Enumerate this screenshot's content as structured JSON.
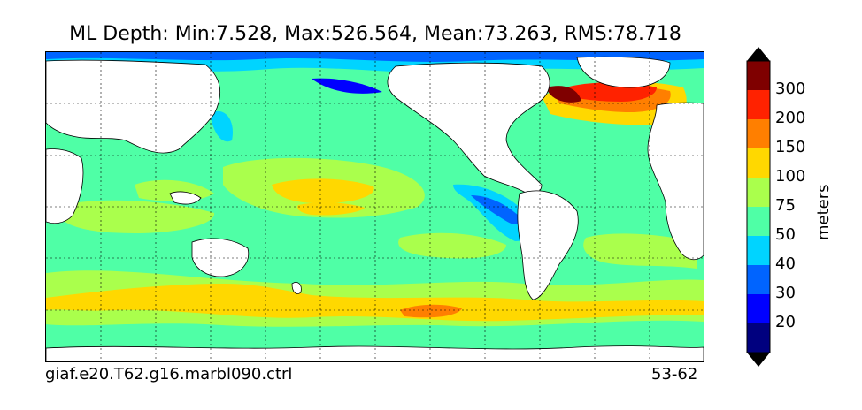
{
  "title": "ML Depth: Min:7.528, Max:526.564, Mean:73.263, RMS:78.718",
  "footer": {
    "case_name": "giaf.e20.T62.g16.marbl090.ctrl",
    "years": "53-62"
  },
  "colorbar": {
    "units": "meters",
    "ticks": [
      "20",
      "30",
      "40",
      "50",
      "75",
      "100",
      "150",
      "200",
      "300"
    ],
    "colors": {
      "lt20": "#00007f",
      "c20_30": "#0000ff",
      "c30_40": "#0064ff",
      "c40_50": "#00d4ff",
      "c50_75": "#4fffa6",
      "c75_100": "#aaff4c",
      "c100_150": "#ffd800",
      "c150_200": "#ff7f00",
      "c200_300": "#ff2200",
      "gt300": "#7f0000"
    }
  },
  "map": {
    "projection": "equirectangular",
    "gridlines": true,
    "land_color": "#ffffff",
    "ocean_background_color": "#4fffa6"
  }
}
